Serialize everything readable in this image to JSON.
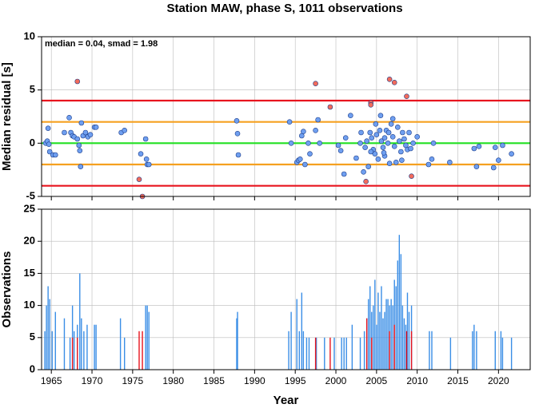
{
  "chart_data": [
    {
      "type": "scatter",
      "title": "Station MAW, phase S, 1011 observations",
      "ylabel": "Median residual [s]",
      "annotation": "median = 0.04, smad = 1.98",
      "xlim": [
        1963.8,
        2023.9
      ],
      "xticks": [
        1965,
        1970,
        1975,
        1980,
        1985,
        1990,
        1995,
        2000,
        2005,
        2010,
        2015,
        2020
      ],
      "ylim": [
        -5,
        10
      ],
      "yticks": [
        -5,
        0,
        5,
        10
      ],
      "grid": true,
      "hlines": [
        {
          "value": 4,
          "color": "#e8141e"
        },
        {
          "value": 2,
          "color": "#f5a020"
        },
        {
          "value": 0,
          "color": "#22e022"
        },
        {
          "value": -2,
          "color": "#f5a020"
        },
        {
          "value": -4,
          "color": "#e8141e"
        }
      ],
      "series": [
        {
          "color": "#6f9ff0",
          "x": [
            1964.3,
            1964.5,
            1964.6,
            1964.7,
            1964.8,
            1965.2,
            1965.5,
            1966.6,
            1967.2,
            1967.4,
            1967.6,
            1967.8,
            1968.2,
            1968.4,
            1968.5,
            1968.6,
            1968.7,
            1968.9,
            1969.2,
            1969.5,
            1969.8,
            1970.3,
            1970.5,
            1973.6,
            1974,
            1976,
            1976.6,
            1976.7,
            1976.8,
            1977,
            1987.8,
            1987.9,
            1988,
            1994.3,
            1994.5,
            1995.2,
            1995.4,
            1995.6,
            1995.8,
            1996,
            1996.2,
            1996.6,
            1996.8,
            1997.5,
            1997.8,
            1998,
            2000.3,
            2000.6,
            2001,
            2001.2,
            2001.8,
            2003,
            2003.4,
            2003.6,
            2003.8,
            2004,
            2004.2,
            2004.4,
            2004.6,
            2004.8,
            2005,
            2005.2,
            2005.4,
            2005.6,
            2005.8,
            2006,
            2006.2,
            2006.4,
            2006.6,
            2006.8,
            2007,
            2007.2,
            2007.4,
            2007.6,
            2007.8,
            2008,
            2008.2,
            2008.4,
            2008.6,
            2008.8,
            2009,
            2009.2,
            2009.5,
            2010,
            2011.4,
            2011.8,
            2012,
            2014,
            2017,
            2017.3,
            2017.6,
            2019.4,
            2019.6,
            2020,
            2020.5,
            2021.6,
            2005.5,
            2006,
            2007,
            2004.9,
            2004.3,
            2003.1,
            2008.1,
            2006.5,
            2002.5,
            2005.9
          ],
          "values": [
            0.0,
            0.2,
            1.4,
            -0.1,
            -0.8,
            -1.1,
            -1.1,
            1.0,
            2.4,
            1.0,
            0.7,
            0.6,
            0.4,
            -0.2,
            -0.7,
            -2.2,
            1.9,
            0.7,
            1.0,
            0.6,
            0.8,
            1.5,
            1.5,
            1.0,
            1.2,
            -1.0,
            0.4,
            -1.5,
            -2.0,
            -2.0,
            2.1,
            0.9,
            -1.1,
            2.0,
            0.0,
            -1.8,
            -1.6,
            -1.5,
            0.7,
            1.1,
            -2.0,
            0.0,
            -1.0,
            1.2,
            2.2,
            0.0,
            -0.2,
            -0.7,
            -2.9,
            0.5,
            2.6,
            0.0,
            -2.7,
            -0.4,
            0.2,
            -2.2,
            1.0,
            0.5,
            -0.6,
            -1.0,
            0.8,
            -1.5,
            1.2,
            0.2,
            -0.4,
            0.5,
            1.2,
            0.0,
            -1.9,
            1.8,
            0.6,
            -0.3,
            -1.8,
            1.5,
            0.2,
            -0.8,
            1.0,
            0.4,
            -0.2,
            -0.6,
            1.0,
            -0.5,
            0.0,
            0.6,
            -2.0,
            -1.5,
            0.0,
            -1.8,
            -0.5,
            -2.2,
            -0.3,
            -2.3,
            -0.4,
            -1.6,
            -0.2,
            -1.0,
            2.6,
            -1.2,
            2.3,
            1.8,
            -0.8,
            1.0,
            -1.6,
            1.0,
            -1.4,
            -0.9
          ]
        },
        {
          "color": "#f26b5b",
          "x": [
            1968.2,
            1975.8,
            1976.2,
            1997.5,
            1999.3,
            2003.7,
            2004.3,
            2004.3,
            2006.6,
            2007.2,
            2008.7,
            2009.3
          ],
          "values": [
            5.8,
            -3.4,
            -5.0,
            5.6,
            3.4,
            -3.6,
            3.8,
            3.6,
            6.0,
            5.7,
            4.4,
            -3.1
          ]
        }
      ]
    },
    {
      "type": "bar",
      "ylabel": "Observations",
      "xlabel": "Year",
      "xlim": [
        1963.8,
        2023.9
      ],
      "xticks": [
        1965,
        1970,
        1975,
        1980,
        1985,
        1990,
        1995,
        2000,
        2005,
        2010,
        2015,
        2020
      ],
      "ylim": [
        0,
        25
      ],
      "yticks": [
        0,
        5,
        10,
        15,
        20,
        25
      ],
      "grid": true,
      "series": [
        {
          "color": "#3a8ee6",
          "x": [
            1964.2,
            1964.4,
            1964.6,
            1964.8,
            1965.1,
            1965.5,
            1966.6,
            1967.3,
            1967.6,
            1967.8,
            1968.2,
            1968.5,
            1968.7,
            1969,
            1969.4,
            1970.3,
            1970.5,
            1973.5,
            1974,
            1976.6,
            1976.8,
            1977,
            1987.8,
            1987.9,
            1994.2,
            1994.5,
            1995.2,
            1995.5,
            1995.8,
            1996,
            1996.4,
            1996.7,
            1997.6,
            1998.6,
            1999.8,
            2000.7,
            2001,
            2001.3,
            2002,
            2003,
            2003.5,
            2003.8,
            2004,
            2004.2,
            2004.4,
            2004.6,
            2004.8,
            2005,
            2005.2,
            2005.4,
            2005.6,
            2005.8,
            2006,
            2006.2,
            2006.4,
            2006.6,
            2006.8,
            2007,
            2007.2,
            2007.4,
            2007.6,
            2007.8,
            2008,
            2008.2,
            2008.4,
            2008.6,
            2008.8,
            2009,
            2009.3,
            2011.5,
            2011.8,
            2014.1,
            2016.8,
            2017,
            2017.3,
            2019.6,
            2020.3,
            2020.5,
            2021.6
          ],
          "values": [
            6,
            10,
            13,
            11,
            6,
            9,
            8,
            5,
            10,
            6,
            7,
            15,
            8,
            6,
            7,
            7,
            7,
            8,
            5,
            10,
            10,
            9,
            8,
            9,
            6,
            9,
            11,
            6,
            12,
            6,
            5,
            5,
            5,
            5,
            5,
            5,
            5,
            5,
            7,
            5,
            6,
            8,
            11,
            13,
            9,
            10,
            14,
            7,
            12,
            9,
            13,
            8,
            9,
            11,
            11,
            10,
            11,
            10,
            14,
            13,
            17,
            21,
            18,
            10,
            8,
            7,
            12,
            9,
            10,
            6,
            6,
            5,
            6,
            7,
            6,
            6,
            6,
            5,
            5
          ]
        },
        {
          "color": "#e8141e",
          "x": [
            1967.6,
            1968.2,
            1975.8,
            1976.2,
            1997.5,
            1999.3,
            2003.8,
            2004.4,
            2006.6,
            2007.2,
            2008.7,
            2009.3
          ],
          "values": [
            5,
            5,
            6,
            6,
            5,
            5,
            8,
            5,
            6,
            7,
            6,
            6
          ]
        }
      ]
    }
  ]
}
